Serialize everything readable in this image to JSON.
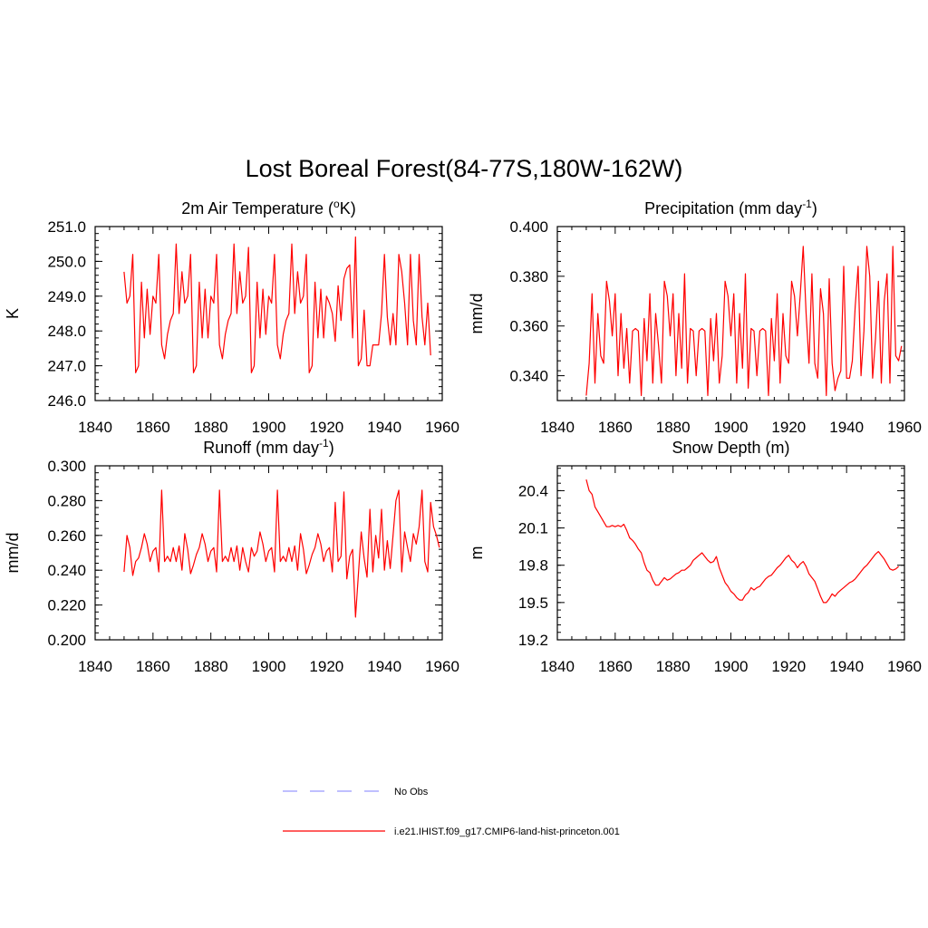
{
  "figure": {
    "title": "Lost Boreal Forest(84-77S,180W-162W)"
  },
  "chart_data": [
    {
      "type": "line",
      "title": "2m Air Temperature (°K)",
      "title_parts": {
        "pre": "2m Air Temperature (",
        "sup": "o",
        "post": "K)"
      },
      "xlabel": "",
      "ylabel": "K",
      "xlim": [
        1840,
        1960
      ],
      "ylim": [
        246.0,
        251.0
      ],
      "xticks": [
        1840,
        1860,
        1880,
        1900,
        1920,
        1940,
        1960
      ],
      "yticks": [
        246.0,
        247.0,
        248.0,
        249.0,
        250.0,
        251.0
      ],
      "ytick_labels": [
        "246.0",
        "247.0",
        "248.0",
        "249.0",
        "250.0",
        "251.0"
      ],
      "x_start": 1850,
      "x_step": 1,
      "series": [
        {
          "color": "#ff0000",
          "values": [
            249.7,
            248.8,
            249.0,
            250.2,
            246.8,
            247.0,
            249.4,
            247.8,
            249.2,
            247.9,
            249.0,
            248.8,
            250.2,
            247.6,
            247.2,
            247.9,
            248.3,
            248.5,
            250.5,
            248.5,
            249.7,
            248.8,
            249.0,
            250.2,
            246.8,
            247.0,
            249.4,
            247.8,
            249.2,
            247.8,
            249.0,
            248.8,
            250.2,
            247.6,
            247.2,
            247.9,
            248.3,
            248.5,
            250.5,
            248.5,
            249.7,
            248.8,
            249.0,
            250.4,
            246.8,
            247.0,
            249.4,
            247.8,
            249.2,
            247.9,
            249.0,
            248.8,
            250.2,
            247.6,
            247.2,
            247.9,
            248.3,
            248.5,
            250.5,
            248.5,
            249.7,
            248.8,
            249.0,
            250.2,
            246.8,
            247.0,
            249.4,
            247.8,
            249.2,
            247.8,
            249.0,
            248.8,
            248.5,
            247.7,
            249.3,
            248.3,
            249.5,
            249.8,
            249.9,
            247.8,
            250.7,
            247.0,
            247.2,
            248.6,
            247.0,
            247.0,
            247.6,
            247.6,
            247.6,
            248.5,
            250.2,
            248.4,
            247.6,
            248.5,
            247.6,
            250.2,
            249.7,
            248.8,
            247.6,
            250.2,
            248.3,
            247.6,
            250.2,
            248.4,
            247.6,
            248.8,
            247.3
          ]
        }
      ]
    },
    {
      "type": "line",
      "title": "Precipitation (mm day-1)",
      "title_parts": {
        "pre": "Precipitation (mm day",
        "sup": "-1",
        "post": ")"
      },
      "xlabel": "",
      "ylabel": "mm/d",
      "xlim": [
        1840,
        1960
      ],
      "ylim": [
        0.33,
        0.4
      ],
      "xticks": [
        1840,
        1860,
        1880,
        1900,
        1920,
        1940,
        1960
      ],
      "yticks": [
        0.34,
        0.36,
        0.38,
        0.4
      ],
      "ytick_labels": [
        "0.340",
        "0.360",
        "0.380",
        "0.400"
      ],
      "x_start": 1850,
      "x_step": 1,
      "series": [
        {
          "color": "#ff0000",
          "values": [
            0.332,
            0.345,
            0.373,
            0.337,
            0.365,
            0.348,
            0.345,
            0.378,
            0.37,
            0.356,
            0.373,
            0.34,
            0.365,
            0.343,
            0.359,
            0.337,
            0.358,
            0.359,
            0.358,
            0.332,
            0.363,
            0.346,
            0.373,
            0.337,
            0.365,
            0.352,
            0.337,
            0.378,
            0.372,
            0.356,
            0.373,
            0.34,
            0.365,
            0.343,
            0.381,
            0.337,
            0.359,
            0.358,
            0.34,
            0.358,
            0.359,
            0.358,
            0.332,
            0.363,
            0.346,
            0.365,
            0.337,
            0.348,
            0.378,
            0.372,
            0.356,
            0.373,
            0.337,
            0.365,
            0.343,
            0.381,
            0.335,
            0.359,
            0.358,
            0.34,
            0.358,
            0.359,
            0.358,
            0.332,
            0.363,
            0.346,
            0.373,
            0.337,
            0.365,
            0.348,
            0.345,
            0.378,
            0.372,
            0.356,
            0.373,
            0.392,
            0.365,
            0.345,
            0.381,
            0.345,
            0.339,
            0.375,
            0.365,
            0.332,
            0.379,
            0.345,
            0.334,
            0.339,
            0.342,
            0.384,
            0.339,
            0.339,
            0.346,
            0.368,
            0.384,
            0.34,
            0.358,
            0.392,
            0.38,
            0.339,
            0.355,
            0.378,
            0.337,
            0.37,
            0.381,
            0.337,
            0.392,
            0.348,
            0.346,
            0.352
          ]
        }
      ]
    },
    {
      "type": "line",
      "title": "Runoff (mm day-1)",
      "title_parts": {
        "pre": "Runoff (mm day",
        "sup": "-1",
        "post": ")"
      },
      "xlabel": "",
      "ylabel": "mm/d",
      "xlim": [
        1840,
        1960
      ],
      "ylim": [
        0.2,
        0.3
      ],
      "xticks": [
        1840,
        1860,
        1880,
        1900,
        1920,
        1940,
        1960
      ],
      "yticks": [
        0.2,
        0.22,
        0.24,
        0.26,
        0.28,
        0.3
      ],
      "ytick_labels": [
        "0.200",
        "0.220",
        "0.240",
        "0.260",
        "0.280",
        "0.300"
      ],
      "x_start": 1850,
      "x_step": 1,
      "series": [
        {
          "color": "#ff0000",
          "values": [
            0.239,
            0.26,
            0.253,
            0.237,
            0.245,
            0.247,
            0.253,
            0.261,
            0.255,
            0.245,
            0.251,
            0.253,
            0.239,
            0.286,
            0.245,
            0.248,
            0.245,
            0.253,
            0.245,
            0.254,
            0.24,
            0.261,
            0.252,
            0.238,
            0.243,
            0.249,
            0.253,
            0.261,
            0.255,
            0.245,
            0.251,
            0.253,
            0.239,
            0.286,
            0.245,
            0.248,
            0.245,
            0.253,
            0.245,
            0.254,
            0.24,
            0.253,
            0.245,
            0.239,
            0.253,
            0.248,
            0.251,
            0.262,
            0.255,
            0.245,
            0.251,
            0.253,
            0.239,
            0.286,
            0.245,
            0.248,
            0.245,
            0.253,
            0.245,
            0.254,
            0.24,
            0.261,
            0.252,
            0.238,
            0.243,
            0.249,
            0.253,
            0.261,
            0.255,
            0.245,
            0.251,
            0.253,
            0.239,
            0.279,
            0.245,
            0.248,
            0.285,
            0.235,
            0.248,
            0.252,
            0.213,
            0.237,
            0.262,
            0.247,
            0.236,
            0.275,
            0.239,
            0.26,
            0.247,
            0.275,
            0.24,
            0.257,
            0.241,
            0.26,
            0.28,
            0.286,
            0.239,
            0.262,
            0.253,
            0.245,
            0.261,
            0.255,
            0.265,
            0.286,
            0.245,
            0.239,
            0.279,
            0.265,
            0.26,
            0.253
          ]
        }
      ]
    },
    {
      "type": "line",
      "title": "Snow Depth (m)",
      "xlabel": "",
      "ylabel": "m",
      "xlim": [
        1840,
        1960
      ],
      "ylim": [
        19.2,
        20.6
      ],
      "xticks": [
        1840,
        1860,
        1880,
        1900,
        1920,
        1940,
        1960
      ],
      "yticks": [
        19.2,
        19.5,
        19.8,
        20.1,
        20.4
      ],
      "ytick_labels": [
        "19.2",
        "19.5",
        "19.8",
        "20.1",
        "20.4"
      ],
      "x_start": 1850,
      "x_step": 1,
      "series": [
        {
          "color": "#ff0000",
          "values": [
            20.49,
            20.4,
            20.37,
            20.27,
            20.23,
            20.19,
            20.15,
            20.11,
            20.11,
            20.12,
            20.11,
            20.12,
            20.11,
            20.13,
            20.08,
            20.02,
            20.0,
            19.97,
            19.93,
            19.9,
            19.82,
            19.76,
            19.74,
            19.68,
            19.64,
            19.64,
            19.67,
            19.7,
            19.68,
            19.69,
            19.71,
            19.73,
            19.74,
            19.76,
            19.76,
            19.78,
            19.8,
            19.84,
            19.86,
            19.88,
            19.9,
            19.87,
            19.84,
            19.82,
            19.83,
            19.87,
            19.78,
            19.72,
            19.66,
            19.63,
            19.59,
            19.57,
            19.54,
            19.52,
            19.52,
            19.56,
            19.58,
            19.62,
            19.6,
            19.62,
            19.63,
            19.66,
            19.69,
            19.71,
            19.72,
            19.75,
            19.78,
            19.8,
            19.83,
            19.86,
            19.88,
            19.84,
            19.82,
            19.78,
            19.81,
            19.83,
            19.79,
            19.73,
            19.7,
            19.67,
            19.61,
            19.55,
            19.5,
            19.5,
            19.53,
            19.57,
            19.55,
            19.58,
            19.6,
            19.62,
            19.64,
            19.66,
            19.67,
            19.69,
            19.72,
            19.75,
            19.78,
            19.8,
            19.83,
            19.86,
            19.89,
            19.91,
            19.88,
            19.85,
            19.81,
            19.77,
            19.76,
            19.77,
            19.79
          ]
        }
      ]
    }
  ],
  "legend": {
    "items": [
      {
        "label": "No Obs",
        "color": "#9999ff",
        "style": "dashed"
      },
      {
        "label": "i.e21.IHIST.f09_g17.CMIP6-land-hist-princeton.001",
        "color": "#ff0000",
        "style": "solid"
      }
    ]
  }
}
